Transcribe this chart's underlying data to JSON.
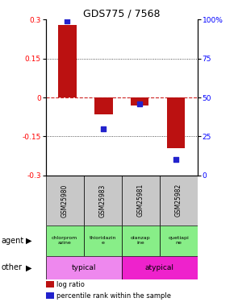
{
  "title": "GDS775 / 7568",
  "samples": [
    "GSM25980",
    "GSM25983",
    "GSM25981",
    "GSM25982"
  ],
  "log_ratios": [
    0.28,
    -0.065,
    -0.03,
    -0.195
  ],
  "percentile_ranks": [
    99,
    30,
    46,
    10
  ],
  "ylim": [
    -0.3,
    0.3
  ],
  "yticks_left": [
    -0.3,
    -0.15,
    0,
    0.15,
    0.3
  ],
  "yticks_right": [
    0,
    25,
    50,
    75,
    100
  ],
  "bar_color": "#bb1111",
  "dot_color": "#2222cc",
  "hline_color": "#cc2222",
  "grid_color": "#222222",
  "agent_labels": [
    "chlorprom\nazine",
    "thioridazin\ne",
    "olanzap\nine",
    "quetiapi\nne"
  ],
  "agent_color": "#88ee88",
  "typical_color": "#ee88ee",
  "atypical_color": "#ee22cc",
  "sample_bg_color": "#c8c8c8",
  "legend_red_label": "log ratio",
  "legend_blue_label": "percentile rank within the sample"
}
